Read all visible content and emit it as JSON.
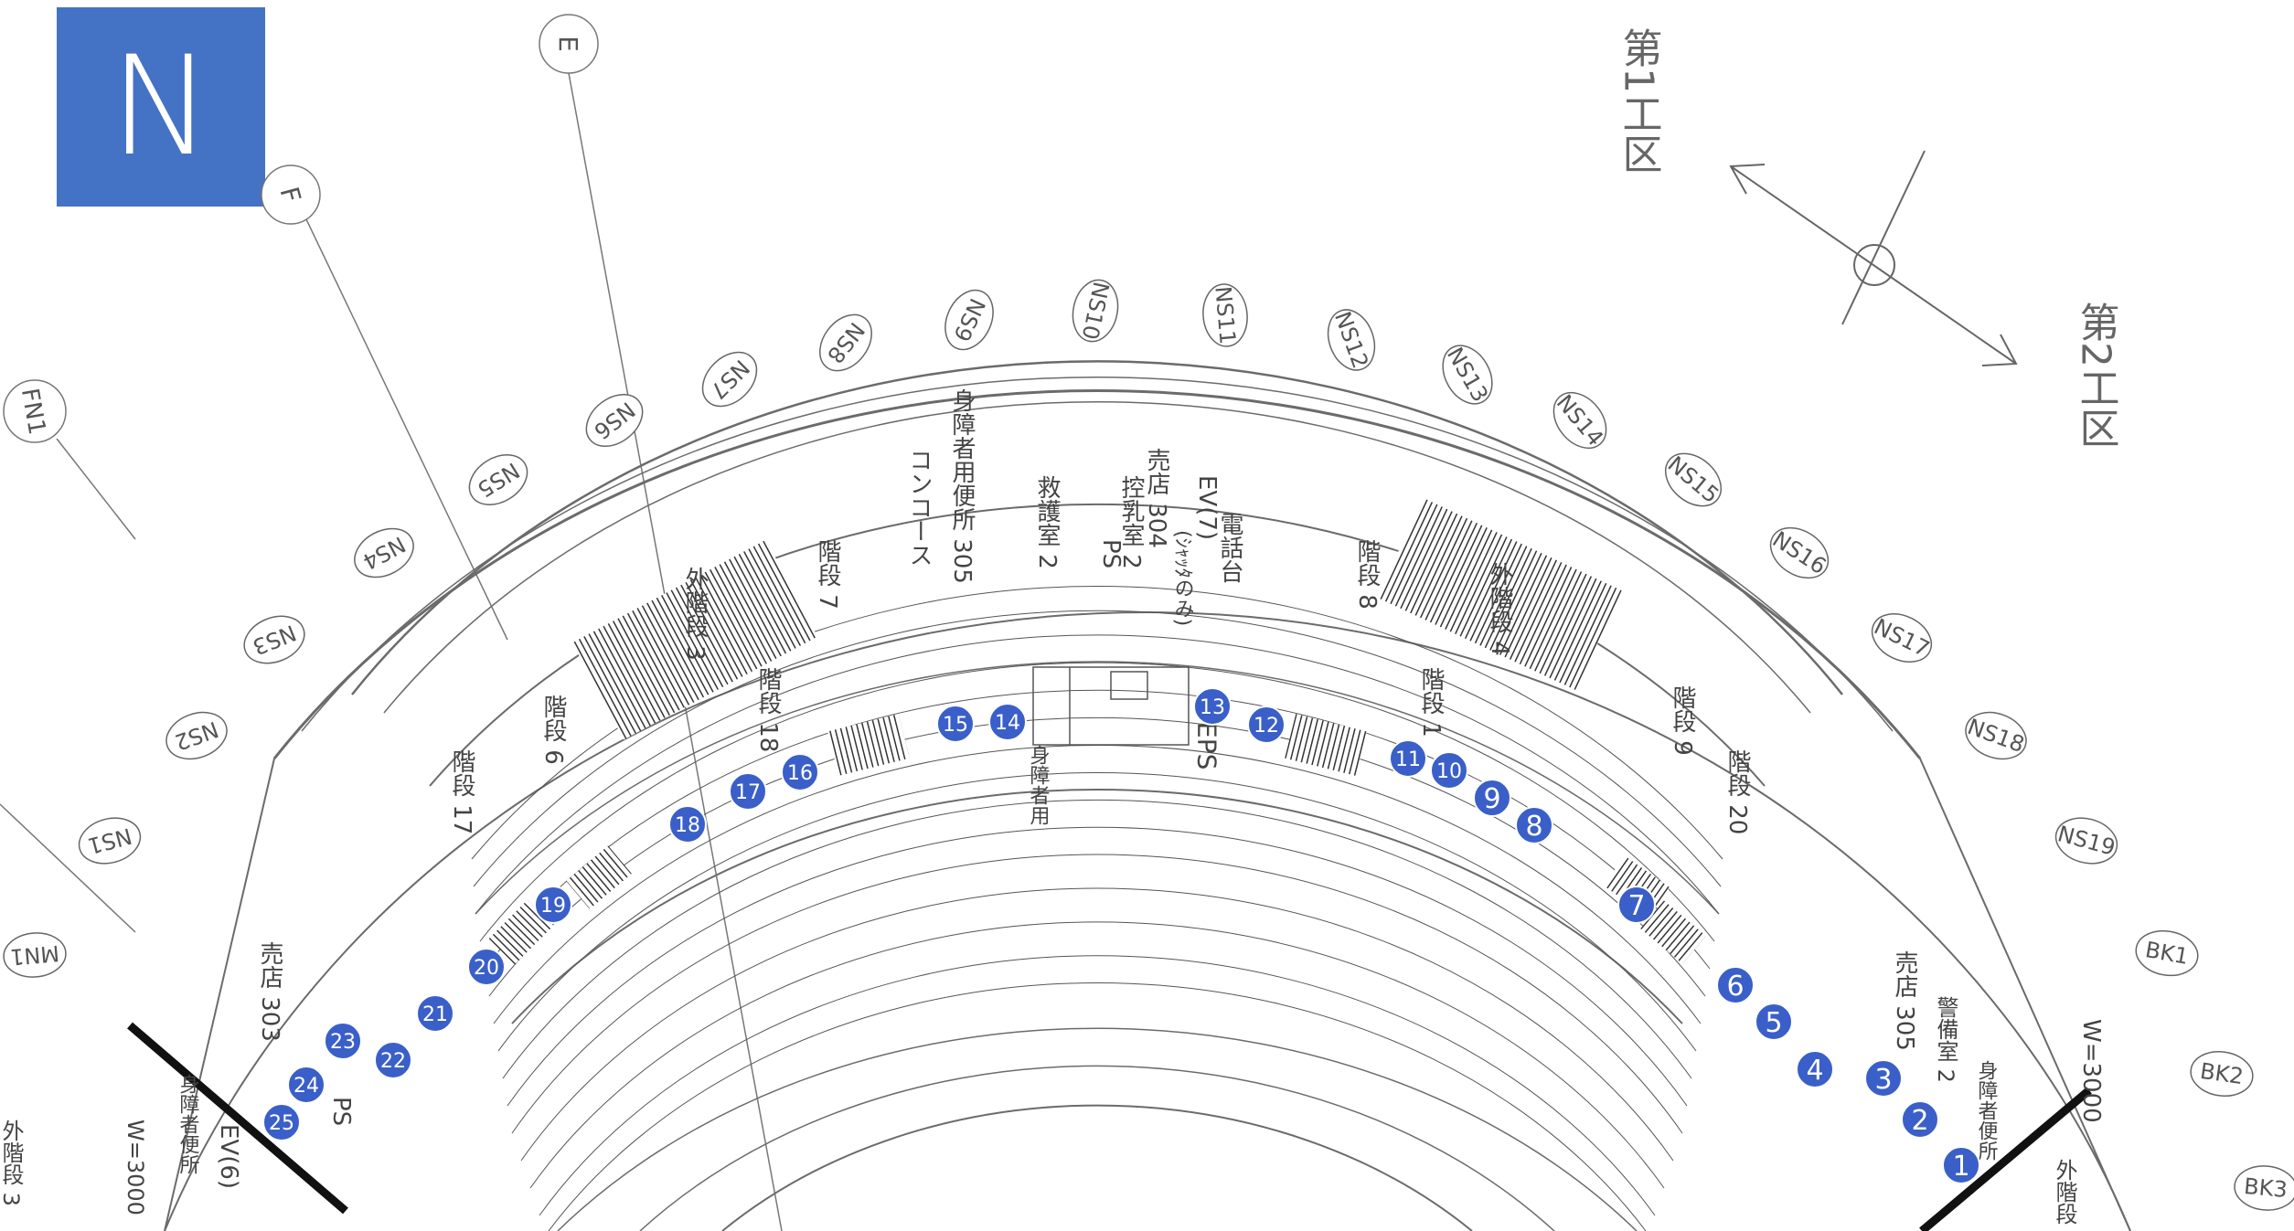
{
  "north_badge": "N",
  "gridlines": [
    "E",
    "F",
    "FN1"
  ],
  "axis_labels": [
    "NS1",
    "NS2",
    "NS3",
    "NS4",
    "NS5",
    "NS6",
    "NS7",
    "NS8",
    "NS9",
    "NS10",
    "NS11",
    "NS12",
    "NS13",
    "NS14",
    "NS15",
    "NS16",
    "NS17",
    "NS18",
    "NS19",
    "MN1",
    "BK1",
    "BK2",
    "BK3"
  ],
  "zones": {
    "zone1": "第1工区",
    "zone2": "第2工区"
  },
  "room_labels": {
    "accessible_toilet_305": "身障者用便所 305",
    "concourse": "コンコース",
    "first_aid_2": "救護室 2",
    "ps": "PS",
    "broadcast_room_2": "控乳室 2",
    "shop_304": "売店 304",
    "elevator_7": "EV(7)",
    "shutter_only": "(ｼｬｯﾀのみ)",
    "telephone": "電話台",
    "eps": "EPS",
    "accessible_wc": "身障者用",
    "stairs_7": "階段 7",
    "stairs_8": "階段 8",
    "stairs_18": "階段 18",
    "stairs_1": "階段 1",
    "stairs_6": "階段 6",
    "stairs_17": "階段 17",
    "stairs_9": "階段 9",
    "stairs_20": "階段 20",
    "ext_stairs_3": "外階段 3",
    "ext_stairs_4": "外階段 4",
    "shop_303": "売店 303",
    "shop_305": "売店 305",
    "security_room_2": "警備室 2",
    "accessible_left": "身障者便所",
    "accessible_right": "身障者便所",
    "ev_6": "EV(6)",
    "ps_left": "PS",
    "w3000_left": "W=3000",
    "w3000_right": "W=3000",
    "ext_stairs_right": "外階段",
    "ext_stairs_left_bottom": "外階段 3"
  },
  "markers": [
    "1",
    "2",
    "3",
    "4",
    "5",
    "6",
    "7",
    "8",
    "9",
    "10",
    "11",
    "12",
    "13",
    "14",
    "15",
    "16",
    "17",
    "18",
    "19",
    "20",
    "21",
    "22",
    "23",
    "24",
    "25"
  ],
  "colors": {
    "marker": "#3a5fc8",
    "badge": "#4472c4",
    "line": "#6b6b6b"
  }
}
